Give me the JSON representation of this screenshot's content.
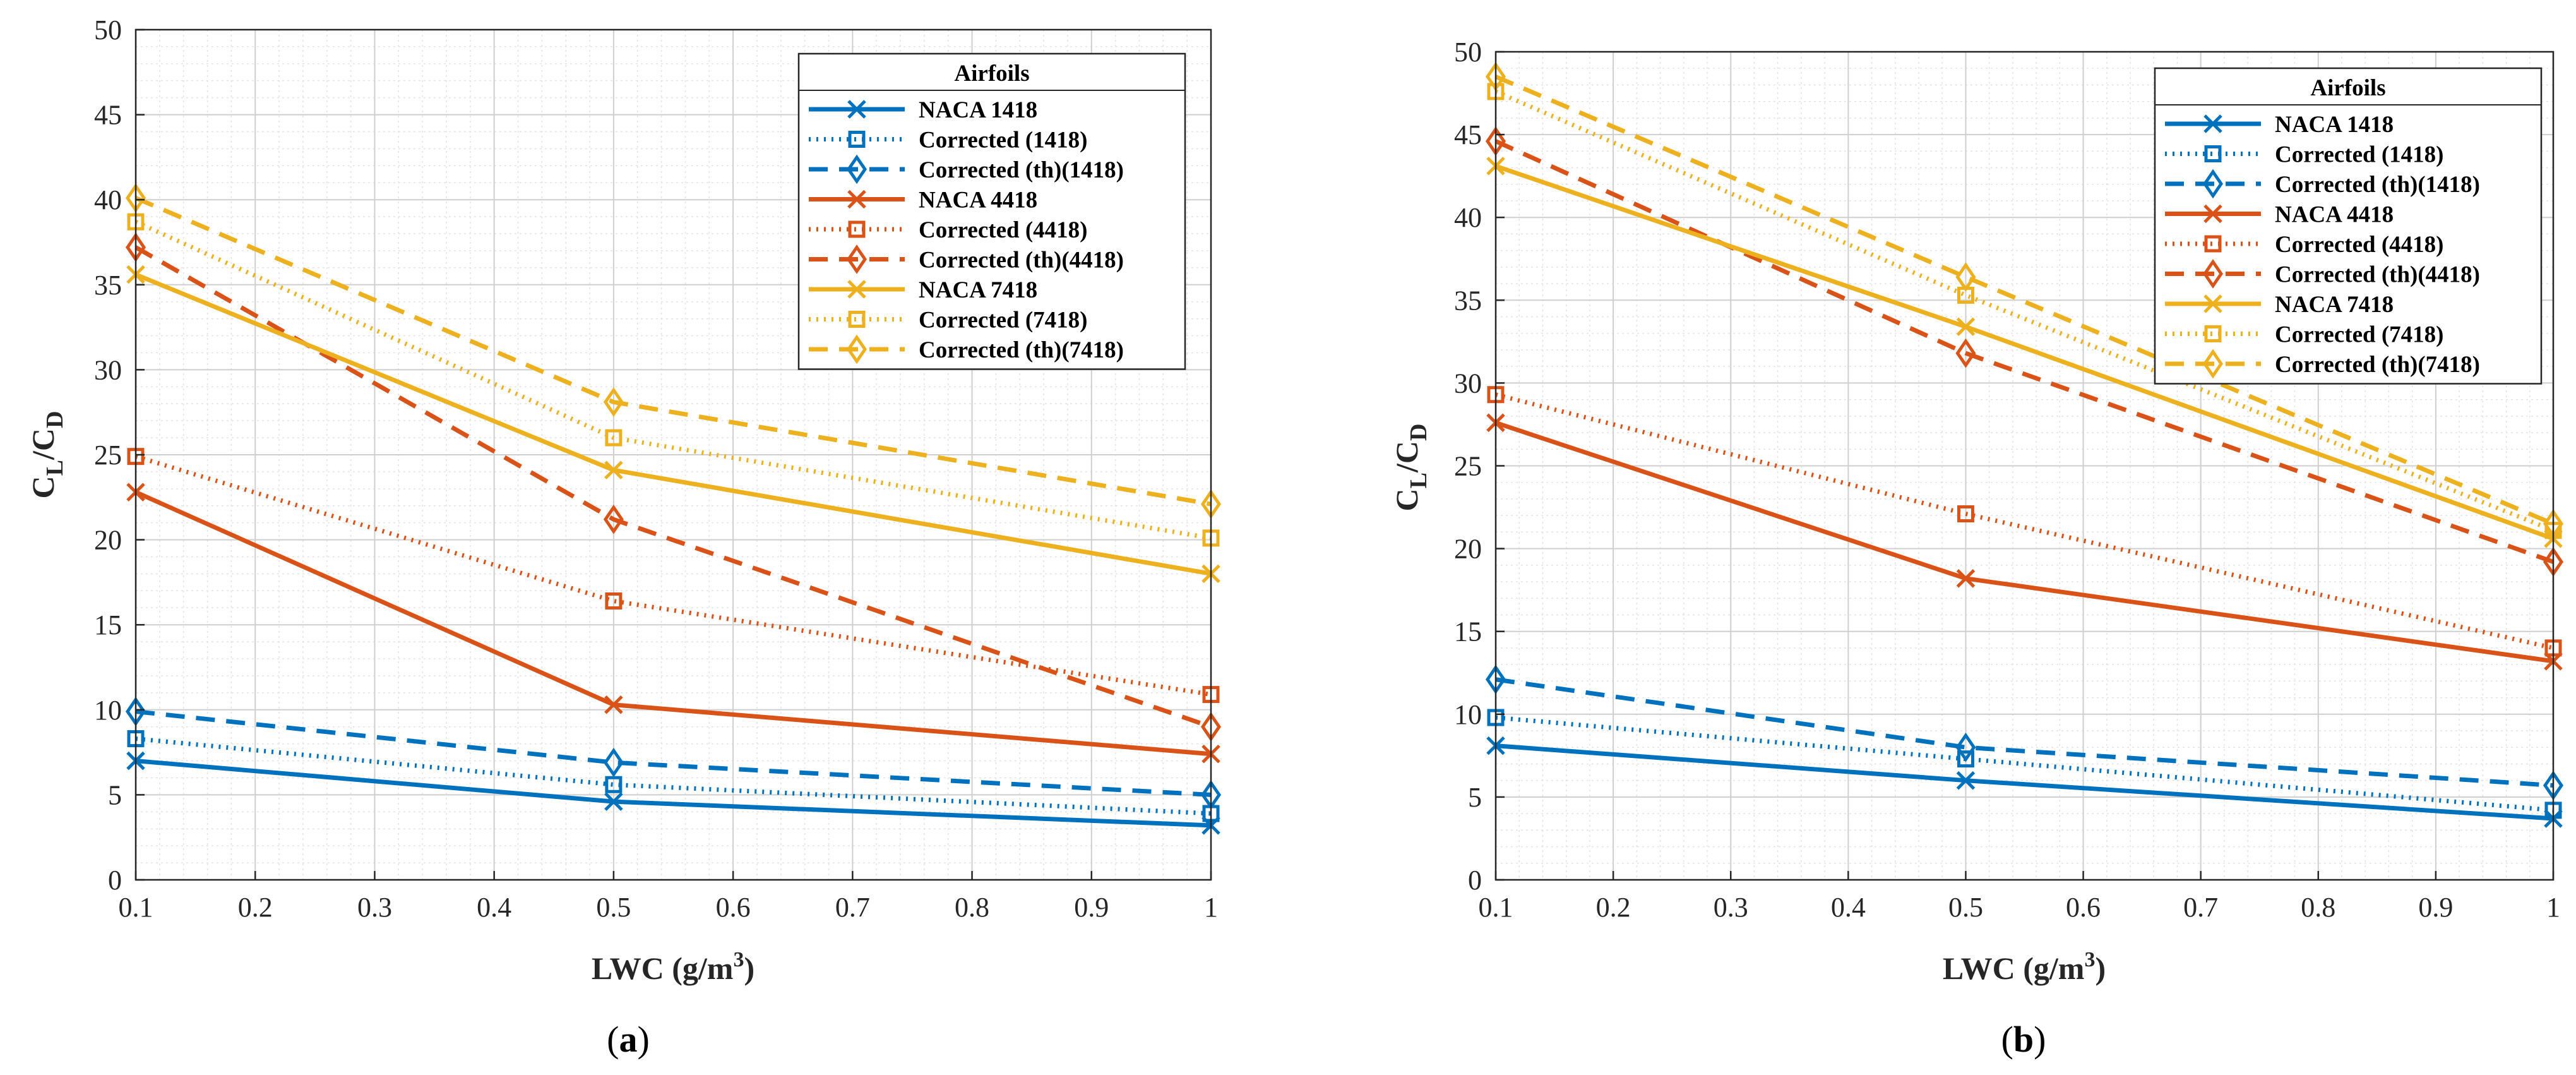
{
  "colors": {
    "blue": "#0072BD",
    "red": "#D95319",
    "yellow": "#EDB120",
    "grid": "#d9d9d9",
    "axis": "#262626"
  },
  "chart_data": [
    {
      "type": "line",
      "caption": "(a)",
      "caption_letter": "a",
      "xlabel": "LWC (g/m3)",
      "xlabel_main": "LWC (g/m",
      "xlabel_sup": "3",
      "xlabel_end": ")",
      "ylabel": "CL/CD",
      "ylabel_parts": {
        "c1": "C",
        "s1": "L",
        "slash": "/C",
        "s2": "D"
      },
      "xlim": [
        0.1,
        1
      ],
      "ylim": [
        0,
        50
      ],
      "xticks": [
        "0.1",
        "0.2",
        "0.3",
        "0.4",
        "0.5",
        "0.6",
        "0.7",
        "0.8",
        "0.9",
        "1"
      ],
      "yticks": [
        "0",
        "5",
        "10",
        "15",
        "20",
        "25",
        "30",
        "35",
        "40",
        "45",
        "50"
      ],
      "grid": true,
      "legend_title": "Airfoils",
      "legend_position": "top-right",
      "x": [
        0.1,
        0.5,
        1
      ],
      "series": [
        {
          "name": "NACA 1418",
          "color": "blue",
          "style": "solid",
          "marker": "x",
          "values": [
            7.0,
            4.6,
            3.2
          ]
        },
        {
          "name": "Corrected (1418)",
          "color": "blue",
          "style": "dotted",
          "marker": "square",
          "values": [
            8.3,
            5.6,
            3.9
          ]
        },
        {
          "name": "Corrected (th)(1418)",
          "color": "blue",
          "style": "dashed",
          "marker": "diamond",
          "values": [
            9.9,
            6.9,
            5.0
          ]
        },
        {
          "name": "NACA 4418",
          "color": "red",
          "style": "solid",
          "marker": "x",
          "values": [
            22.8,
            10.3,
            7.4
          ]
        },
        {
          "name": "Corrected (4418)",
          "color": "red",
          "style": "dotted",
          "marker": "square",
          "values": [
            24.9,
            16.4,
            10.9
          ]
        },
        {
          "name": "Corrected (th)(4418)",
          "color": "red",
          "style": "dashed",
          "marker": "diamond",
          "values": [
            37.2,
            21.2,
            9.0
          ]
        },
        {
          "name": "NACA 7418",
          "color": "yellow",
          "style": "solid",
          "marker": "x",
          "values": [
            35.6,
            24.1,
            18.0
          ]
        },
        {
          "name": "Corrected (7418)",
          "color": "yellow",
          "style": "dotted",
          "marker": "square",
          "values": [
            38.7,
            26.0,
            20.1
          ]
        },
        {
          "name": "Corrected (th)(7418)",
          "color": "yellow",
          "style": "dashed",
          "marker": "diamond",
          "values": [
            40.1,
            28.1,
            22.1
          ]
        }
      ]
    },
    {
      "type": "line",
      "caption": "(b)",
      "caption_letter": "b",
      "xlabel": "LWC (g/m3)",
      "xlabel_main": "LWC (g/m",
      "xlabel_sup": "3",
      "xlabel_end": ")",
      "ylabel": "CL/CD",
      "ylabel_parts": {
        "c1": "C",
        "s1": "L",
        "slash": "/C",
        "s2": "D"
      },
      "xlim": [
        0.1,
        1
      ],
      "ylim": [
        0,
        50
      ],
      "xticks": [
        "0.1",
        "0.2",
        "0.3",
        "0.4",
        "0.5",
        "0.6",
        "0.7",
        "0.8",
        "0.9",
        "1"
      ],
      "yticks": [
        "0",
        "5",
        "10",
        "15",
        "20",
        "25",
        "30",
        "35",
        "40",
        "45",
        "50"
      ],
      "grid": true,
      "legend_title": "Airfoils",
      "legend_position": "top-right",
      "x": [
        0.1,
        0.5,
        1
      ],
      "series": [
        {
          "name": "NACA 1418",
          "color": "blue",
          "style": "solid",
          "marker": "x",
          "values": [
            8.1,
            6.0,
            3.7
          ]
        },
        {
          "name": "Corrected (1418)",
          "color": "blue",
          "style": "dotted",
          "marker": "square",
          "values": [
            9.8,
            7.3,
            4.2
          ]
        },
        {
          "name": "Corrected (th)(1418)",
          "color": "blue",
          "style": "dashed",
          "marker": "diamond",
          "values": [
            12.1,
            8.0,
            5.7
          ]
        },
        {
          "name": "NACA 4418",
          "color": "red",
          "style": "solid",
          "marker": "x",
          "values": [
            27.6,
            18.2,
            13.2
          ]
        },
        {
          "name": "Corrected (4418)",
          "color": "red",
          "style": "dotted",
          "marker": "square",
          "values": [
            29.3,
            22.1,
            14.0
          ]
        },
        {
          "name": "Corrected (th)(4418)",
          "color": "red",
          "style": "dashed",
          "marker": "diamond",
          "values": [
            44.6,
            31.8,
            19.2
          ]
        },
        {
          "name": "NACA 7418",
          "color": "yellow",
          "style": "solid",
          "marker": "x",
          "values": [
            43.1,
            33.4,
            20.6
          ]
        },
        {
          "name": "Corrected (7418)",
          "color": "yellow",
          "style": "dotted",
          "marker": "square",
          "values": [
            47.6,
            35.3,
            21.1
          ]
        },
        {
          "name": "Corrected (th)(7418)",
          "color": "yellow",
          "style": "dashed",
          "marker": "diamond",
          "values": [
            48.5,
            36.4,
            21.5
          ]
        }
      ]
    }
  ]
}
